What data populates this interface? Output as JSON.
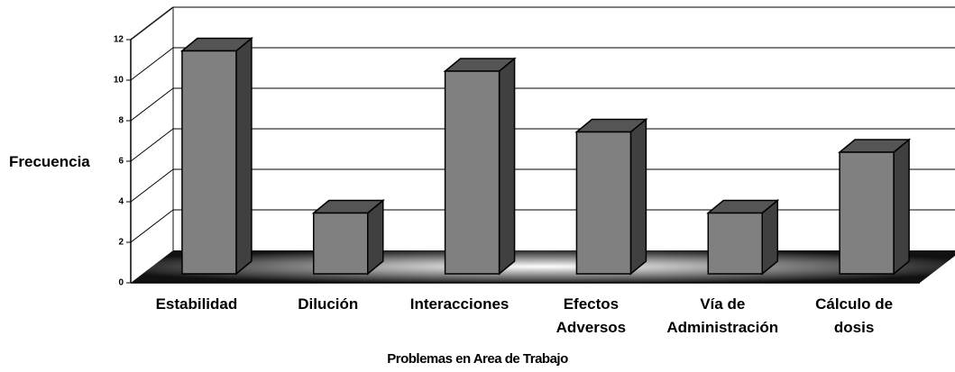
{
  "chart_data": {
    "type": "bar3d",
    "y_label": "Frecuencia",
    "x_label": "Problemas en Area de Trabajo",
    "categories": [
      "Estabilidad",
      "Dilución",
      "Interacciones",
      "Efectos\nAdversos",
      "Vía de\nAdministración",
      "Cálculo de\ndosis"
    ],
    "values": [
      11,
      3,
      10,
      7,
      3,
      6
    ],
    "color": "#808080",
    "ylim": [
      0,
      12
    ],
    "yticks": [
      0,
      2,
      4,
      6,
      8,
      10,
      12
    ],
    "grid": true
  }
}
